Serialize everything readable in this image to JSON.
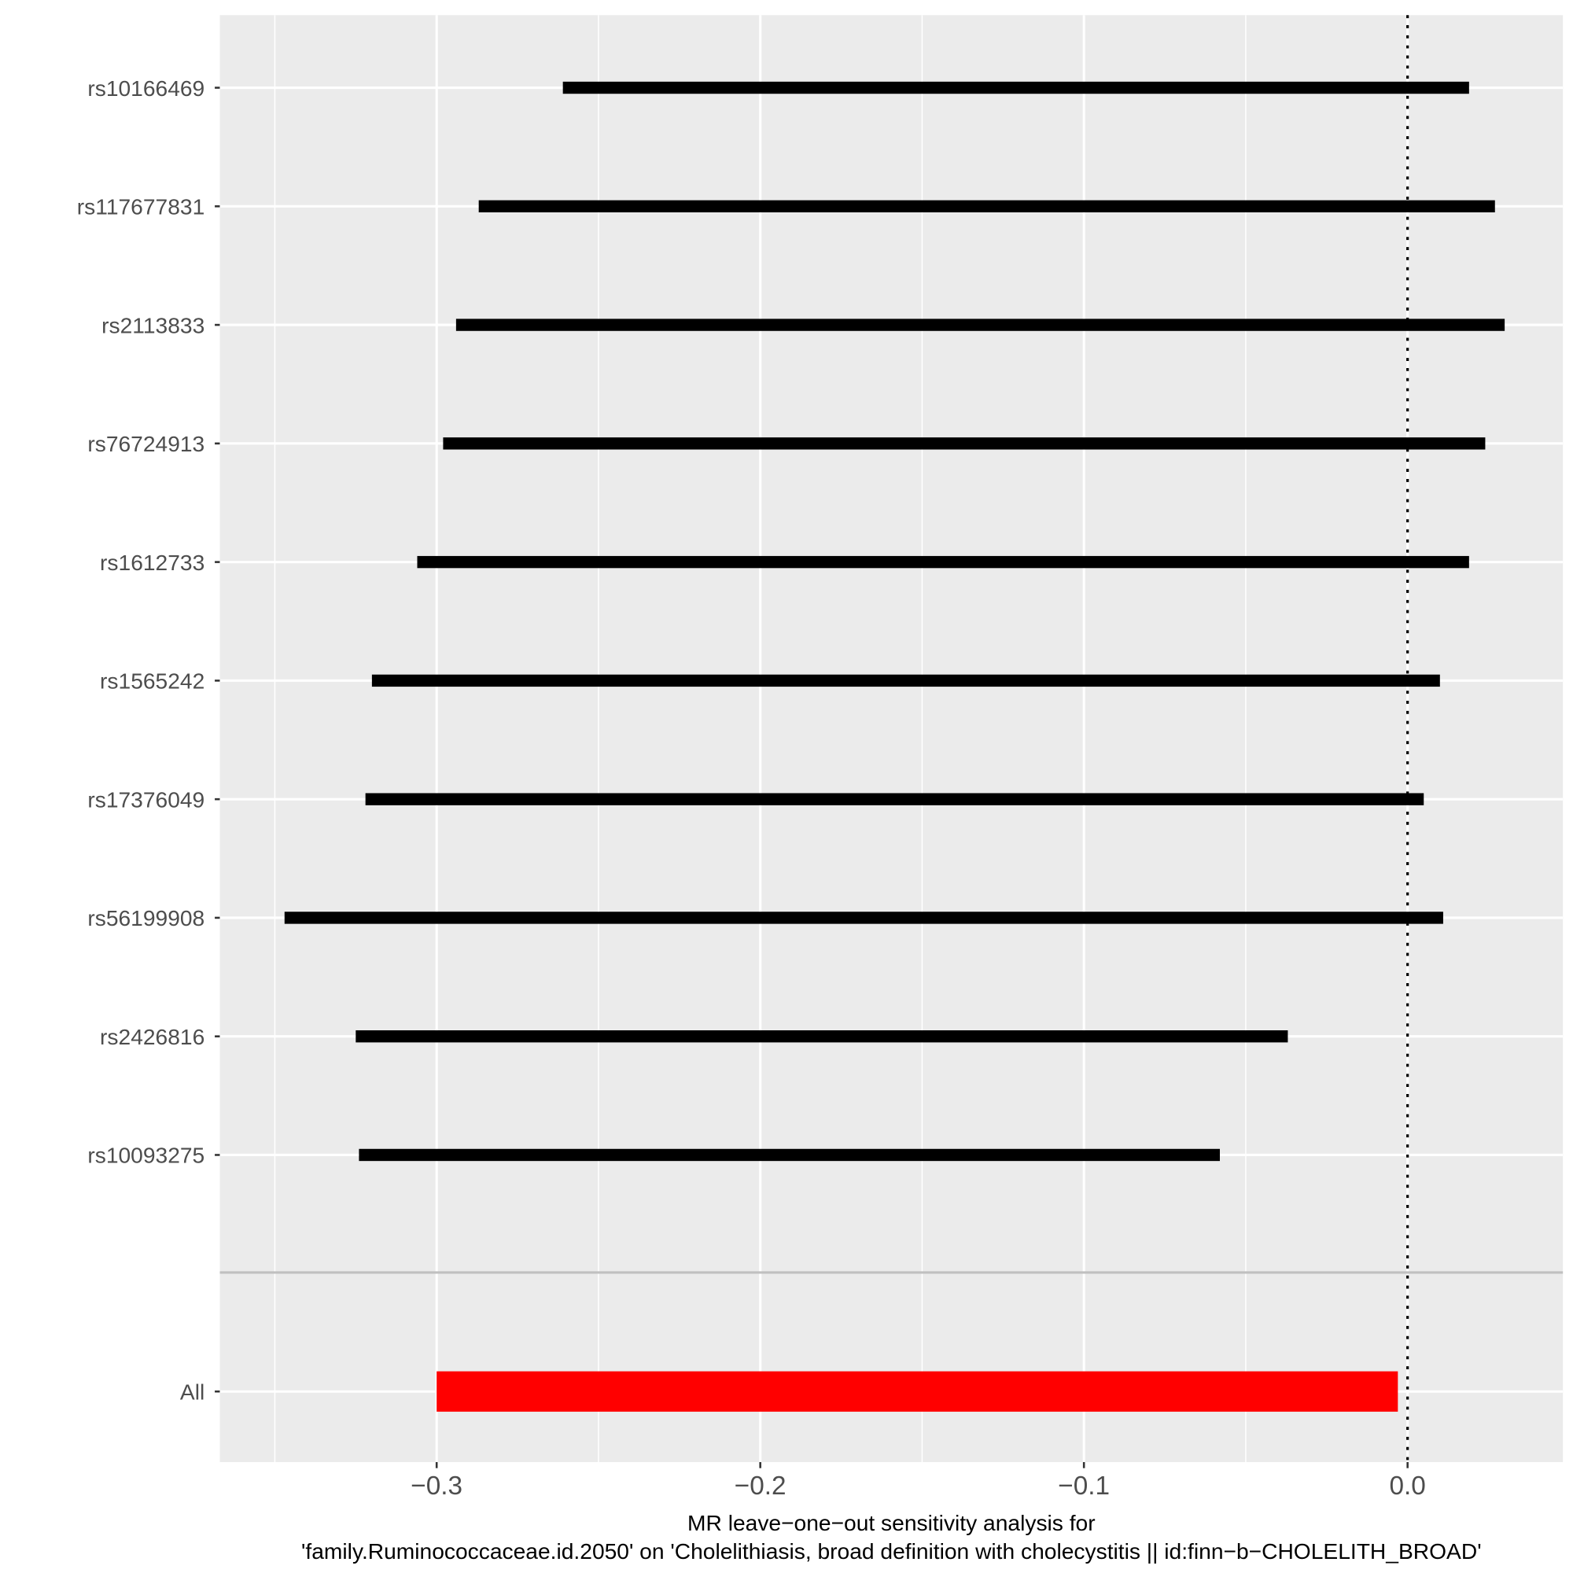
{
  "chart_data": {
    "type": "forest",
    "title": "",
    "xlabel_lines": [
      "MR leave−one−out sensitivity analysis for",
      "'family.Ruminococcaceae.id.2050' on 'Cholelithiasis, broad definition with cholecystitis || id:finn−b−CHOLELITH_BROAD'"
    ],
    "ylabel": "",
    "xlim": [
      -0.367,
      0.048
    ],
    "x_ticks": [
      -0.3,
      -0.2,
      -0.1,
      0.0
    ],
    "x_tick_labels": [
      "−0.3",
      "−0.2",
      "−0.1",
      "0.0"
    ],
    "reference_line": 0.0,
    "grid": true,
    "colors": {
      "snp": "#000000",
      "all": "#ff0000",
      "panel": "#ebebeb",
      "grid": "#ffffff"
    },
    "snps": [
      {
        "label": "rs10166469",
        "b": -0.121,
        "lo": -0.261,
        "hi": 0.019
      },
      {
        "label": "rs117677831",
        "b": -0.13,
        "lo": -0.287,
        "hi": 0.027
      },
      {
        "label": "rs2113833",
        "b": -0.132,
        "lo": -0.294,
        "hi": 0.03
      },
      {
        "label": "rs76724913",
        "b": -0.137,
        "lo": -0.298,
        "hi": 0.024
      },
      {
        "label": "rs1612733",
        "b": -0.144,
        "lo": -0.306,
        "hi": 0.019
      },
      {
        "label": "rs1565242",
        "b": -0.155,
        "lo": -0.32,
        "hi": 0.01
      },
      {
        "label": "rs17376049",
        "b": -0.159,
        "lo": -0.322,
        "hi": 0.005
      },
      {
        "label": "rs56199908",
        "b": -0.169,
        "lo": -0.347,
        "hi": 0.011
      },
      {
        "label": "rs2426816",
        "b": -0.181,
        "lo": -0.325,
        "hi": -0.037
      },
      {
        "label": "rs10093275",
        "b": -0.192,
        "lo": -0.324,
        "hi": -0.058
      }
    ],
    "all": {
      "label": "All",
      "b": -0.152,
      "lo": -0.3,
      "hi": -0.003
    }
  }
}
